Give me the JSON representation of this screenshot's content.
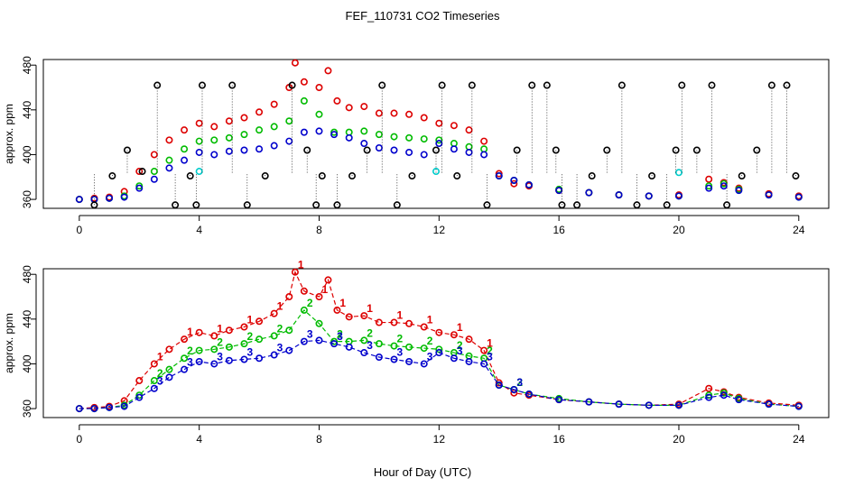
{
  "title": "FEF_110731  CO2 Timeseries",
  "xlabel": "Hour of Day (UTC)",
  "colors": {
    "red": "#dd0000",
    "green": "#00bb00",
    "blue": "#0000cc",
    "cyan": "#00cccc",
    "black": "#000000"
  },
  "chart_data": [
    {
      "type": "scatter",
      "panel": "top",
      "ylabel": "approx. ppm",
      "xlim": [
        -1.2,
        25
      ],
      "ylim": [
        352,
        485
      ],
      "xticks": [
        0,
        4,
        8,
        12,
        16,
        20,
        24
      ],
      "yticks": [
        360,
        400,
        440,
        480
      ],
      "markers": "open circles",
      "series": [
        {
          "color": "red",
          "x": [
            0,
            0.5,
            1,
            1.5,
            2,
            2.5,
            3,
            3.5,
            4,
            4.5,
            5,
            5.5,
            6,
            6.5,
            7,
            7.2,
            7.5,
            8,
            8.3,
            8.6,
            9,
            9.5,
            10,
            10.5,
            11,
            11.5,
            12,
            12.5,
            13,
            13.5,
            14,
            14.5,
            15,
            16,
            17,
            18,
            19,
            20,
            21,
            21.5,
            22,
            23,
            24
          ],
          "y": [
            360,
            361,
            362,
            367,
            385,
            400,
            413,
            422,
            428,
            425,
            430,
            433,
            438,
            445,
            460,
            482,
            465,
            460,
            475,
            448,
            442,
            443,
            437,
            437,
            436,
            433,
            428,
            426,
            422,
            412,
            383,
            374,
            372,
            368,
            366,
            364,
            363,
            364,
            378,
            375,
            370,
            365,
            363
          ]
        },
        {
          "color": "green",
          "x": [
            0,
            0.5,
            1,
            1.5,
            2,
            2.5,
            3,
            3.5,
            4,
            4.5,
            5,
            5.5,
            6,
            6.5,
            7,
            7.5,
            8,
            8.5,
            9,
            9.5,
            10,
            10.5,
            11,
            11.5,
            12,
            12.5,
            13,
            13.5,
            14,
            14.5,
            15,
            16,
            17,
            18,
            19,
            20,
            21,
            21.5,
            22,
            23,
            24
          ],
          "y": [
            360,
            360,
            361,
            363,
            372,
            385,
            395,
            405,
            412,
            413,
            415,
            418,
            422,
            425,
            430,
            448,
            436,
            420,
            420,
            421,
            418,
            416,
            415,
            414,
            413,
            410,
            407,
            405,
            381,
            377,
            373,
            369,
            366,
            364,
            363,
            363,
            372,
            374,
            369,
            364,
            362
          ]
        },
        {
          "color": "blue",
          "x": [
            0,
            0.5,
            1,
            1.5,
            2,
            2.5,
            3,
            3.5,
            4,
            4.5,
            5,
            5.5,
            6,
            6.5,
            7,
            7.5,
            8,
            8.5,
            9,
            9.5,
            10,
            10.5,
            11,
            11.5,
            12,
            12.5,
            13,
            13.5,
            14,
            14.5,
            15,
            16,
            17,
            18,
            19,
            20,
            21,
            21.5,
            22,
            23,
            24
          ],
          "y": [
            360,
            360,
            361,
            362,
            370,
            378,
            388,
            395,
            402,
            400,
            403,
            404,
            405,
            408,
            412,
            420,
            421,
            418,
            415,
            410,
            406,
            404,
            402,
            400,
            410,
            405,
            402,
            400,
            381,
            377,
            373,
            368,
            366,
            364,
            363,
            363,
            370,
            372,
            368,
            364,
            362
          ]
        },
        {
          "color": "cyan",
          "x": [
            4.0,
            11.9,
            20.0
          ],
          "y": [
            385,
            385,
            384
          ]
        },
        {
          "color": "black",
          "x": [
            0.5,
            1.1,
            1.6,
            2.1,
            2.6,
            3.2,
            3.7,
            3.9,
            4.1,
            5.1,
            5.6,
            6.2,
            7.1,
            7.6,
            7.9,
            8.1,
            8.6,
            9.1,
            9.6,
            10.1,
            10.6,
            11.1,
            11.9,
            12.1,
            12.6,
            13.1,
            13.6,
            14.6,
            15.1,
            15.6,
            15.9,
            16.1,
            16.6,
            17.1,
            17.6,
            18.1,
            18.6,
            19.1,
            19.6,
            19.9,
            20.1,
            20.6,
            21.1,
            21.6,
            22.1,
            22.6,
            23.1,
            23.6,
            23.9
          ],
          "y": [
            355,
            381,
            404,
            385,
            462,
            355,
            381,
            355,
            462,
            462,
            355,
            381,
            462,
            404,
            355,
            381,
            355,
            381,
            404,
            462,
            355,
            381,
            404,
            462,
            381,
            462,
            355,
            404,
            462,
            462,
            404,
            355,
            355,
            381,
            404,
            462,
            355,
            381,
            355,
            404,
            462,
            404,
            462,
            355,
            381,
            404,
            462,
            462,
            381
          ]
        }
      ]
    },
    {
      "type": "scatter",
      "panel": "bottom",
      "ylabel": "approx. ppm",
      "xlim": [
        -1.2,
        25
      ],
      "ylim": [
        352,
        485
      ],
      "xticks": [
        0,
        4,
        8,
        12,
        16,
        20,
        24
      ],
      "yticks": [
        360,
        400,
        440,
        480
      ],
      "markers": "numbers 1, 2, 3 and open circles",
      "series": [
        {
          "label": "1",
          "color": "red",
          "x": [
            0,
            0.5,
            1,
            1.5,
            2,
            2.5,
            3,
            3.5,
            4,
            4.5,
            5,
            5.5,
            6,
            6.5,
            7,
            7.2,
            7.5,
            8,
            8.3,
            8.6,
            9,
            9.5,
            10,
            10.5,
            11,
            11.5,
            12,
            12.5,
            13,
            13.5,
            14,
            14.5,
            15,
            16,
            17,
            18,
            19,
            20,
            21,
            21.5,
            22,
            23,
            24
          ],
          "y": [
            360,
            361,
            362,
            367,
            385,
            400,
            413,
            422,
            428,
            425,
            430,
            433,
            438,
            445,
            460,
            482,
            465,
            460,
            475,
            448,
            442,
            443,
            437,
            437,
            436,
            433,
            428,
            426,
            422,
            412,
            383,
            374,
            372,
            368,
            366,
            364,
            363,
            364,
            378,
            375,
            370,
            365,
            363
          ]
        },
        {
          "label": "2",
          "color": "green",
          "x": [
            0,
            0.5,
            1,
            1.5,
            2,
            2.5,
            3,
            3.5,
            4,
            4.5,
            5,
            5.5,
            6,
            6.5,
            7,
            7.5,
            8,
            8.5,
            9,
            9.5,
            10,
            10.5,
            11,
            11.5,
            12,
            12.5,
            13,
            13.5,
            14,
            14.5,
            15,
            16,
            17,
            18,
            19,
            20,
            21,
            21.5,
            22,
            23,
            24
          ],
          "y": [
            360,
            360,
            361,
            363,
            372,
            385,
            395,
            405,
            412,
            413,
            415,
            418,
            422,
            425,
            430,
            448,
            436,
            420,
            420,
            421,
            418,
            416,
            415,
            414,
            413,
            410,
            407,
            405,
            381,
            377,
            373,
            369,
            366,
            364,
            363,
            363,
            372,
            374,
            369,
            364,
            362
          ]
        },
        {
          "label": "3",
          "color": "blue",
          "x": [
            0,
            0.5,
            1,
            1.5,
            2,
            2.5,
            3,
            3.5,
            4,
            4.5,
            5,
            5.5,
            6,
            6.5,
            7,
            7.5,
            8,
            8.5,
            9,
            9.5,
            10,
            10.5,
            11,
            11.5,
            12,
            12.5,
            13,
            13.5,
            14,
            14.5,
            15,
            16,
            17,
            18,
            19,
            20,
            21,
            21.5,
            22,
            23,
            24
          ],
          "y": [
            360,
            360,
            361,
            362,
            370,
            378,
            388,
            395,
            402,
            400,
            403,
            404,
            405,
            408,
            412,
            420,
            421,
            418,
            415,
            410,
            406,
            404,
            402,
            400,
            410,
            405,
            402,
            400,
            381,
            377,
            373,
            368,
            366,
            364,
            363,
            363,
            370,
            372,
            368,
            364,
            362
          ]
        }
      ]
    }
  ]
}
